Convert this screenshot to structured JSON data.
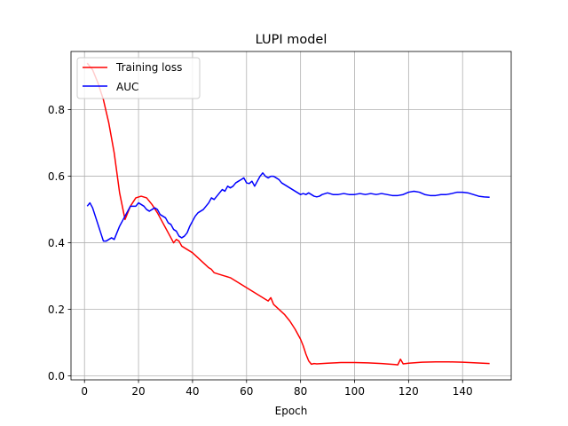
{
  "chart_data": {
    "type": "line",
    "title": "LUPI model",
    "xlabel": "Epoch",
    "ylabel": "",
    "xlim": [
      -5,
      158
    ],
    "ylim": [
      -0.012,
      0.975
    ],
    "xticks": [
      0,
      20,
      40,
      60,
      80,
      100,
      120,
      140
    ],
    "yticks": [
      0.0,
      0.2,
      0.4,
      0.6,
      0.8
    ],
    "xtick_labels": [
      "0",
      "20",
      "40",
      "60",
      "80",
      "100",
      "120",
      "140"
    ],
    "ytick_labels": [
      "0.0",
      "0.2",
      "0.4",
      "0.6",
      "0.8"
    ],
    "grid": true,
    "legend_position": "top-left",
    "series": [
      {
        "name": "Training loss",
        "color": "#ff0000",
        "x": [
          1,
          3,
          5,
          7,
          9,
          11,
          13,
          15,
          17,
          19,
          21,
          23,
          25,
          27,
          29,
          31,
          32,
          33,
          34,
          35,
          36,
          38,
          40,
          42,
          44,
          46,
          47,
          48,
          50,
          52,
          54,
          56,
          58,
          60,
          62,
          64,
          66,
          68,
          69,
          70,
          72,
          74,
          76,
          78,
          80,
          81,
          82,
          83,
          84,
          85,
          86,
          90,
          95,
          100,
          105,
          110,
          115,
          116,
          117,
          118,
          120,
          125,
          130,
          135,
          140,
          145,
          150
        ],
        "y": [
          0.94,
          0.92,
          0.88,
          0.83,
          0.76,
          0.67,
          0.55,
          0.47,
          0.51,
          0.535,
          0.54,
          0.535,
          0.515,
          0.49,
          0.46,
          0.43,
          0.415,
          0.4,
          0.41,
          0.405,
          0.39,
          0.38,
          0.37,
          0.355,
          0.34,
          0.325,
          0.32,
          0.31,
          0.305,
          0.3,
          0.295,
          0.285,
          0.275,
          0.265,
          0.255,
          0.245,
          0.235,
          0.225,
          0.235,
          0.215,
          0.2,
          0.185,
          0.165,
          0.14,
          0.11,
          0.09,
          0.065,
          0.045,
          0.035,
          0.037,
          0.036,
          0.038,
          0.04,
          0.04,
          0.039,
          0.037,
          0.034,
          0.033,
          0.05,
          0.036,
          0.038,
          0.041,
          0.042,
          0.042,
          0.041,
          0.039,
          0.037
        ]
      },
      {
        "name": "AUC",
        "color": "#0000ff",
        "x": [
          1,
          2,
          3,
          4,
          5,
          6,
          7,
          8,
          9,
          10,
          11,
          12,
          13,
          14,
          15,
          16,
          17,
          18,
          19,
          20,
          21,
          22,
          23,
          24,
          25,
          26,
          27,
          28,
          29,
          30,
          31,
          32,
          33,
          34,
          35,
          36,
          37,
          38,
          39,
          40,
          41,
          42,
          43,
          44,
          45,
          46,
          47,
          48,
          49,
          50,
          51,
          52,
          53,
          54,
          55,
          56,
          57,
          58,
          59,
          60,
          61,
          62,
          63,
          64,
          65,
          66,
          67,
          68,
          69,
          70,
          71,
          72,
          73,
          74,
          75,
          76,
          77,
          78,
          79,
          80,
          81,
          82,
          83,
          84,
          85,
          86,
          87,
          88,
          90,
          92,
          94,
          96,
          98,
          100,
          102,
          104,
          106,
          108,
          110,
          112,
          114,
          116,
          118,
          120,
          122,
          124,
          126,
          128,
          130,
          132,
          134,
          136,
          138,
          140,
          142,
          144,
          146,
          148,
          150
        ],
        "y": [
          0.51,
          0.52,
          0.505,
          0.48,
          0.455,
          0.43,
          0.405,
          0.405,
          0.41,
          0.415,
          0.41,
          0.43,
          0.45,
          0.465,
          0.48,
          0.495,
          0.51,
          0.51,
          0.51,
          0.52,
          0.515,
          0.51,
          0.5,
          0.495,
          0.5,
          0.505,
          0.5,
          0.485,
          0.48,
          0.475,
          0.46,
          0.455,
          0.44,
          0.435,
          0.42,
          0.415,
          0.42,
          0.43,
          0.45,
          0.465,
          0.48,
          0.49,
          0.495,
          0.5,
          0.51,
          0.52,
          0.535,
          0.53,
          0.54,
          0.55,
          0.56,
          0.555,
          0.57,
          0.565,
          0.57,
          0.58,
          0.585,
          0.59,
          0.595,
          0.58,
          0.578,
          0.585,
          0.57,
          0.585,
          0.6,
          0.61,
          0.6,
          0.595,
          0.6,
          0.6,
          0.595,
          0.59,
          0.58,
          0.575,
          0.57,
          0.565,
          0.56,
          0.555,
          0.55,
          0.545,
          0.548,
          0.545,
          0.55,
          0.545,
          0.54,
          0.538,
          0.54,
          0.545,
          0.55,
          0.545,
          0.545,
          0.548,
          0.545,
          0.545,
          0.548,
          0.545,
          0.548,
          0.545,
          0.548,
          0.545,
          0.542,
          0.542,
          0.545,
          0.552,
          0.555,
          0.552,
          0.545,
          0.542,
          0.542,
          0.545,
          0.545,
          0.548,
          0.552,
          0.552,
          0.55,
          0.545,
          0.54,
          0.538,
          0.537
        ]
      }
    ]
  }
}
